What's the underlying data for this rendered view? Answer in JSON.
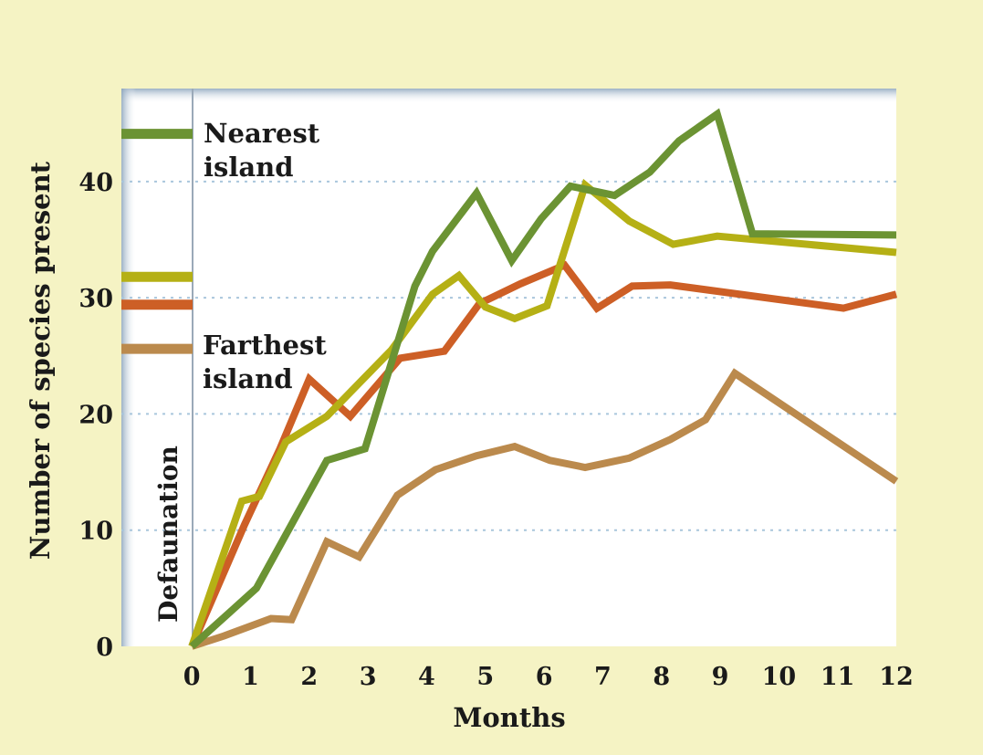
{
  "chart_data": {
    "type": "line",
    "xlabel": "Months",
    "ylabel": "Number of species present",
    "xlim": [
      -1.2,
      12
    ],
    "ylim": [
      0,
      48
    ],
    "x_ticks": [
      0,
      1,
      2,
      3,
      4,
      5,
      6,
      7,
      8,
      9,
      10,
      11,
      12
    ],
    "y_ticks": [
      0,
      10,
      20,
      30,
      40
    ],
    "gridlines": [
      10,
      20,
      30,
      40
    ],
    "annotations": {
      "nearest": "Nearest",
      "nearest_2": "island",
      "farthest": "Farthest",
      "farthest_2": "island",
      "defaunation": "Defaunation"
    },
    "series": [
      {
        "color": "#6b9333",
        "baseline": 44.1,
        "points": [
          [
            0,
            0
          ],
          [
            1.1,
            5
          ],
          [
            2.3,
            16
          ],
          [
            2.95,
            17
          ],
          [
            3.8,
            31
          ],
          [
            4.1,
            34
          ],
          [
            4.85,
            39
          ],
          [
            5.45,
            33.2
          ],
          [
            5.95,
            36.8
          ],
          [
            6.45,
            39.6
          ],
          [
            7.2,
            38.8
          ],
          [
            7.8,
            40.8
          ],
          [
            8.3,
            43.5
          ],
          [
            8.95,
            45.8
          ],
          [
            9.55,
            35.5
          ],
          [
            12,
            35.4
          ]
        ]
      },
      {
        "color": "#b5b015",
        "baseline": 31.8,
        "points": [
          [
            0,
            0
          ],
          [
            0.85,
            12.5
          ],
          [
            1.15,
            12.9
          ],
          [
            1.6,
            17.6
          ],
          [
            2.3,
            19.8
          ],
          [
            3.4,
            25.5
          ],
          [
            4.1,
            30.3
          ],
          [
            4.55,
            31.9
          ],
          [
            5,
            29.2
          ],
          [
            5.5,
            28.2
          ],
          [
            6.05,
            29.3
          ],
          [
            6.7,
            39.7
          ],
          [
            7.45,
            36.6
          ],
          [
            8.2,
            34.6
          ],
          [
            8.95,
            35.3
          ],
          [
            12,
            33.9
          ]
        ]
      },
      {
        "color": "#cd5f26",
        "baseline": 29.4,
        "points": [
          [
            0,
            0
          ],
          [
            0.9,
            10.5
          ],
          [
            1.5,
            17
          ],
          [
            2,
            23
          ],
          [
            2.7,
            19.8
          ],
          [
            3.55,
            24.8
          ],
          [
            4.3,
            25.4
          ],
          [
            4.9,
            29.5
          ],
          [
            5.6,
            31.2
          ],
          [
            6.35,
            32.8
          ],
          [
            6.9,
            29.1
          ],
          [
            7.5,
            31
          ],
          [
            8.15,
            31.1
          ],
          [
            11.1,
            29.1
          ],
          [
            12,
            30.3
          ]
        ]
      },
      {
        "color": "#bb8a4d",
        "baseline": 25.6,
        "points": [
          [
            0,
            0
          ],
          [
            0.55,
            0.9
          ],
          [
            1.35,
            2.4
          ],
          [
            1.7,
            2.3
          ],
          [
            2.3,
            9
          ],
          [
            2.85,
            7.7
          ],
          [
            3.5,
            13
          ],
          [
            4.15,
            15.2
          ],
          [
            4.85,
            16.4
          ],
          [
            5.5,
            17.2
          ],
          [
            6.1,
            16
          ],
          [
            6.7,
            15.4
          ],
          [
            7.45,
            16.2
          ],
          [
            8.15,
            17.8
          ],
          [
            8.75,
            19.5
          ],
          [
            9.25,
            23.5
          ],
          [
            12,
            14.2
          ]
        ]
      }
    ]
  }
}
